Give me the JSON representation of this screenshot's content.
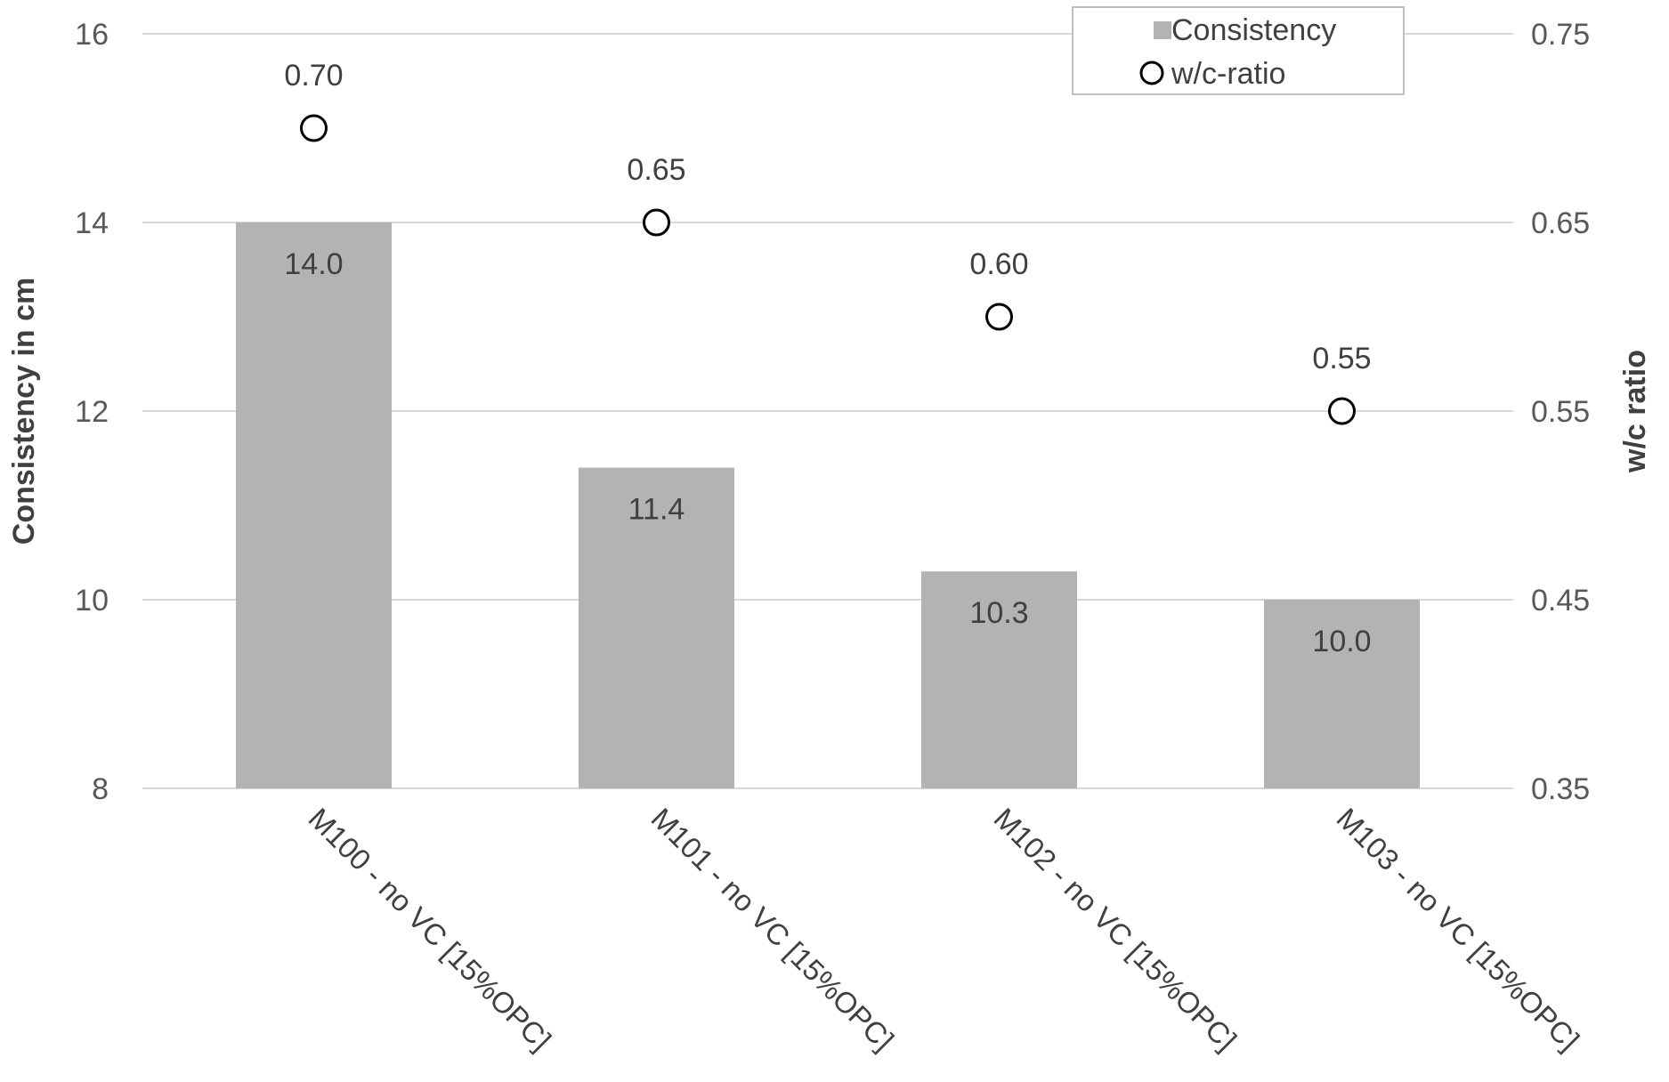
{
  "chart_data": {
    "type": "bar",
    "categories": [
      "M100 - no VC [15%OPC]",
      "M101 - no VC [15%OPC]",
      "M102 - no VC [15%OPC]",
      "M103 - no VC [15%OPC]"
    ],
    "series": [
      {
        "name": "Consistency",
        "type": "bar",
        "axis": "left",
        "values": [
          14.0,
          11.4,
          10.3,
          10.0
        ],
        "labels": [
          "14.0",
          "11.4",
          "10.3",
          "10.0"
        ],
        "color": "#b3b3b3"
      },
      {
        "name": "w/c-ratio",
        "type": "scatter",
        "axis": "right",
        "values": [
          0.7,
          0.65,
          0.6,
          0.55
        ],
        "labels": [
          "0.70",
          "0.65",
          "0.60",
          "0.55"
        ],
        "marker": "open-circle",
        "color": "#000000"
      }
    ],
    "ylabel": "Consistency in cm",
    "y2label": "w/c ratio",
    "ylim": [
      8,
      16
    ],
    "y2lim": [
      0.35,
      0.75
    ],
    "yticks": [
      "8",
      "10",
      "12",
      "14",
      "16"
    ],
    "y2ticks": [
      "0.35",
      "0.45",
      "0.55",
      "0.65",
      "0.75"
    ],
    "grid": true,
    "legend": "top-right",
    "colors": {
      "bar": "#b3b3b3",
      "grid": "#d9d9d9",
      "text": "#595959",
      "marker": "#000000"
    }
  }
}
